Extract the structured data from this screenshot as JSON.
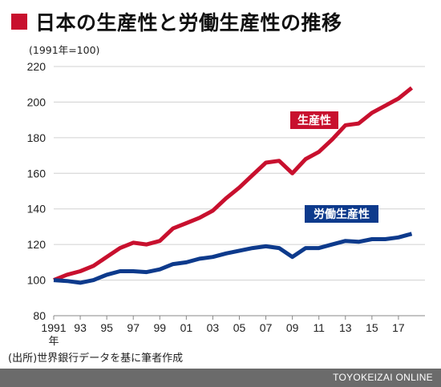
{
  "title": "日本の生産性と労働生産性の推移",
  "unit_note": "(1991年=100)",
  "source": "(出所)世界銀行データを基に筆者作成",
  "footer": "TOYOKEIZAI ONLINE",
  "colors": {
    "productivity": "#c8102e",
    "labor_productivity": "#0d3a8c",
    "title_square": "#c8102e",
    "grid": "#d0d0d0"
  },
  "chart_data": {
    "type": "line",
    "x": [
      1991,
      1992,
      1993,
      1994,
      1995,
      1996,
      1997,
      1998,
      1999,
      2000,
      2001,
      2002,
      2003,
      2004,
      2005,
      2006,
      2007,
      2008,
      2009,
      2010,
      2011,
      2012,
      2013,
      2014,
      2015,
      2016,
      2017,
      2018
    ],
    "x_tick_labels": [
      "1991",
      "93",
      "95",
      "97",
      "99",
      "01",
      "03",
      "05",
      "07",
      "09",
      "11",
      "13",
      "15",
      "17"
    ],
    "x_axis_year_label": "年",
    "ylim": [
      80,
      220
    ],
    "y_ticks": [
      80,
      100,
      120,
      140,
      160,
      180,
      200,
      220
    ],
    "grid": true,
    "series": [
      {
        "name": "生産性",
        "values": [
          100,
          103,
          105,
          108,
          113,
          118,
          121,
          120,
          122,
          129,
          132,
          135,
          139,
          146,
          152,
          159,
          166,
          167,
          160,
          168,
          172,
          179,
          187,
          188,
          194,
          198,
          202,
          208
        ]
      },
      {
        "name": "労働生産性",
        "values": [
          100,
          99.5,
          98.5,
          100,
          103,
          105,
          105,
          104.5,
          106,
          109,
          110,
          112,
          113,
          115,
          116.5,
          118,
          119,
          118,
          113,
          118,
          118,
          120,
          122,
          121.5,
          123,
          123,
          124,
          126
        ]
      }
    ]
  }
}
